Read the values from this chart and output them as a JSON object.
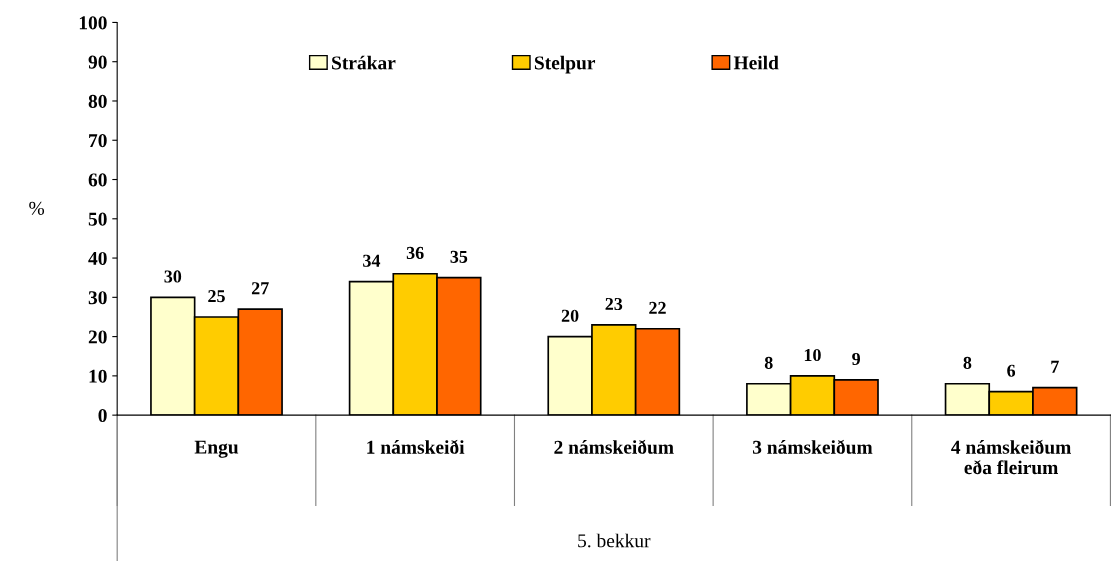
{
  "chart_data": {
    "type": "bar",
    "xlabel": "5. bekkur",
    "ylabel": "%",
    "categories": [
      "Engu",
      "1 námskeiði",
      "2 námskeiðum",
      "3 námskeiðum",
      "4 námskeiðum\neða fleirum"
    ],
    "series": [
      {
        "name": "Strákar",
        "color": "#ffffcc",
        "values": [
          30,
          34,
          20,
          8,
          8
        ]
      },
      {
        "name": "Stelpur",
        "color": "#ffcc00",
        "values": [
          25,
          36,
          23,
          10,
          6
        ]
      },
      {
        "name": "Heild",
        "color": "#ff6600",
        "values": [
          27,
          35,
          22,
          9,
          7
        ]
      }
    ],
    "ylim": [
      0,
      100
    ],
    "yticks": [
      0,
      10,
      20,
      30,
      40,
      50,
      60,
      70,
      80,
      90,
      100
    ],
    "data_labels": true,
    "grid": false,
    "legend": "top"
  }
}
